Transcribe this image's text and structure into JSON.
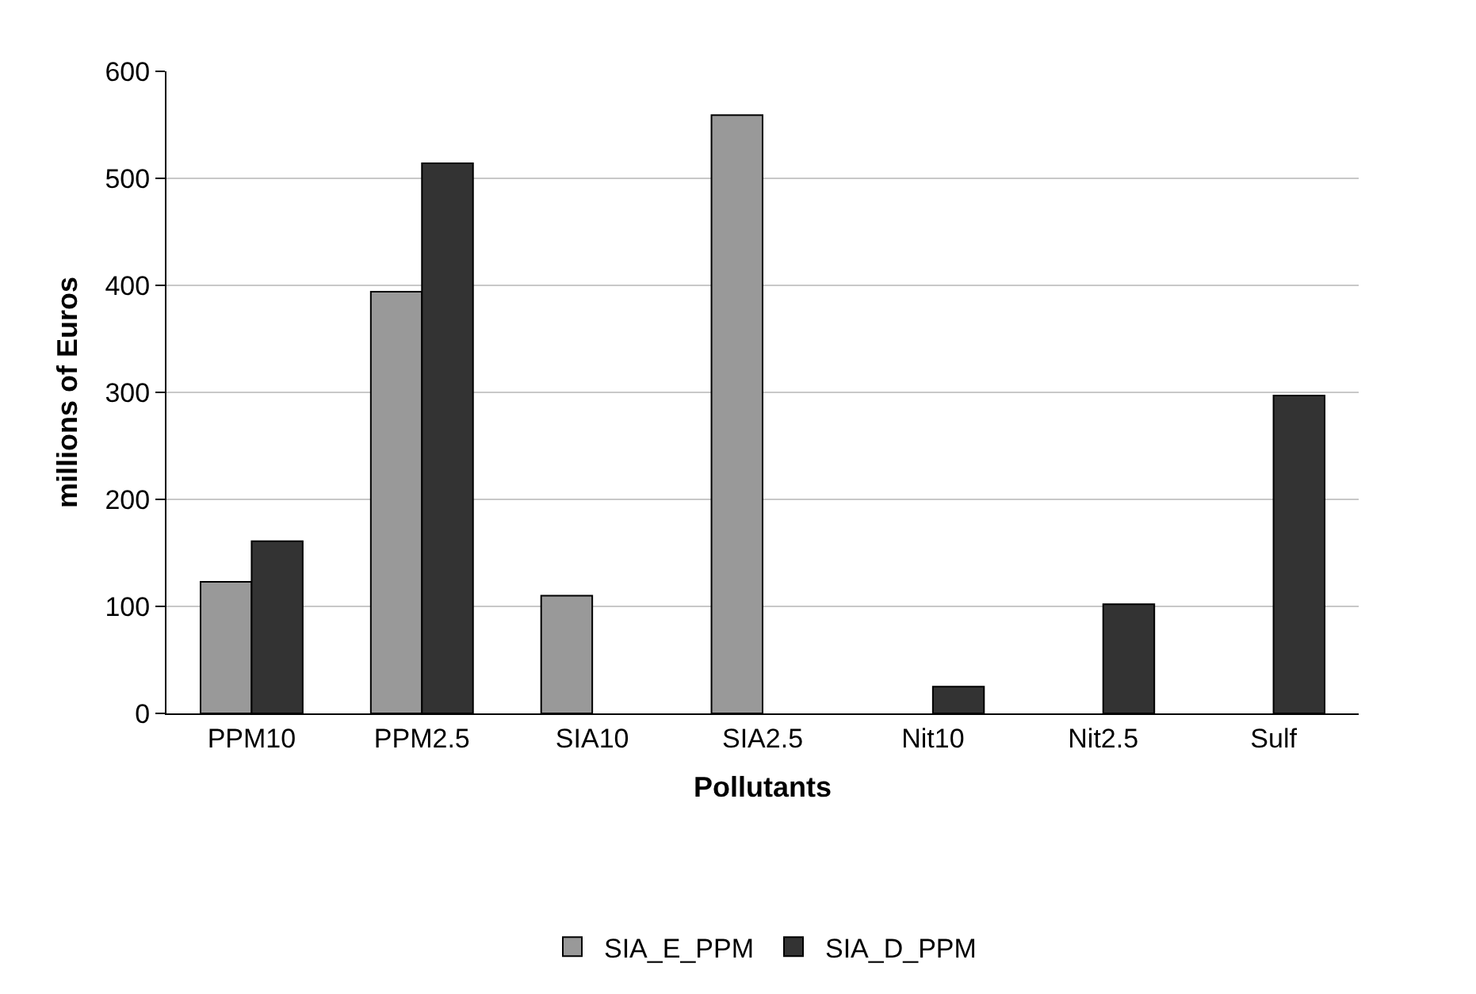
{
  "chart_data": {
    "type": "bar",
    "xlabel": "Pollutants",
    "ylabel": "millions of Euros",
    "categories": [
      "PPM10",
      "PPM2.5",
      "SIA10",
      "SIA2.5",
      "Nit10",
      "Nit2.5",
      "Sulf"
    ],
    "series": [
      {
        "name": "SIA_E_PPM",
        "color": "#999999",
        "values": [
          123,
          394,
          110,
          559,
          null,
          null,
          null
        ]
      },
      {
        "name": "SIA_D_PPM",
        "color": "#333333",
        "values": [
          161,
          514,
          null,
          null,
          25,
          102,
          297
        ]
      }
    ],
    "ylim": [
      0,
      600
    ],
    "yticks": [
      0,
      100,
      200,
      300,
      400,
      500,
      600
    ],
    "grid": "y",
    "legend": "bottom"
  }
}
